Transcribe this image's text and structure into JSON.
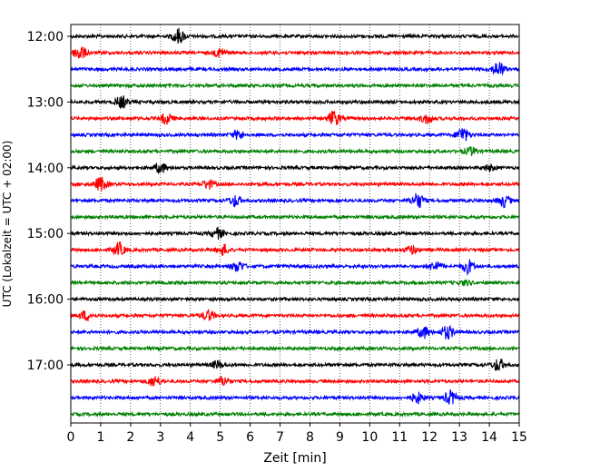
{
  "chart_data": {
    "type": "line",
    "title": "",
    "xlabel": "Zeit  [min]",
    "ylabel": "UTC (Lokalzeit = UTC + 02:00)",
    "xlim": [
      0,
      15
    ],
    "x_ticks": [
      0,
      1,
      2,
      3,
      4,
      5,
      6,
      7,
      8,
      9,
      10,
      11,
      12,
      13,
      14,
      15
    ],
    "x_tick_labels": [
      "0",
      "1",
      "2",
      "3",
      "4",
      "5",
      "6",
      "7",
      "8",
      "9",
      "10",
      "11",
      "12",
      "13",
      "14",
      "15"
    ],
    "grid": "vertical-dotted",
    "y_tick_labels": [
      {
        "label": "12:00",
        "trace_index": 0
      },
      {
        "label": "13:00",
        "trace_index": 4
      },
      {
        "label": "14:00",
        "trace_index": 8
      },
      {
        "label": "15:00",
        "trace_index": 12
      },
      {
        "label": "16:00",
        "trace_index": 16
      },
      {
        "label": "17:00",
        "trace_index": 20
      }
    ],
    "color_cycle": [
      "#000000",
      "#ff0000",
      "#0000ff",
      "#008000"
    ],
    "trace_interval_minutes": 15,
    "series": [
      {
        "name": "12:00",
        "bursts": [
          [
            3.6,
            1.0
          ]
        ]
      },
      {
        "name": "12:15",
        "bursts": [
          [
            0.3,
            1.0
          ],
          [
            5.0,
            0.6
          ]
        ]
      },
      {
        "name": "12:30",
        "bursts": [
          [
            14.3,
            1.0
          ]
        ]
      },
      {
        "name": "12:45",
        "bursts": []
      },
      {
        "name": "13:00",
        "bursts": [
          [
            1.7,
            0.8
          ]
        ]
      },
      {
        "name": "13:15",
        "bursts": [
          [
            3.2,
            0.7
          ],
          [
            8.8,
            1.0
          ],
          [
            11.9,
            0.6
          ]
        ]
      },
      {
        "name": "13:30",
        "bursts": [
          [
            5.6,
            0.6
          ],
          [
            13.1,
            1.0
          ]
        ]
      },
      {
        "name": "13:45",
        "bursts": [
          [
            13.4,
            0.5
          ]
        ]
      },
      {
        "name": "14:00",
        "bursts": [
          [
            3.0,
            0.7
          ],
          [
            14.0,
            0.4
          ]
        ]
      },
      {
        "name": "14:15",
        "bursts": [
          [
            1.0,
            0.9
          ],
          [
            4.6,
            0.6
          ]
        ]
      },
      {
        "name": "14:30",
        "bursts": [
          [
            5.5,
            0.7
          ],
          [
            11.6,
            1.0
          ],
          [
            14.5,
            0.8
          ]
        ]
      },
      {
        "name": "14:45",
        "bursts": []
      },
      {
        "name": "15:00",
        "bursts": [
          [
            4.9,
            0.7
          ]
        ]
      },
      {
        "name": "15:15",
        "bursts": [
          [
            1.6,
            0.9
          ],
          [
            5.1,
            0.7
          ],
          [
            11.4,
            0.5
          ]
        ]
      },
      {
        "name": "15:30",
        "bursts": [
          [
            5.6,
            0.7
          ],
          [
            12.2,
            0.6
          ],
          [
            13.3,
            0.9
          ]
        ]
      },
      {
        "name": "15:45",
        "bursts": [
          [
            13.2,
            0.3
          ]
        ]
      },
      {
        "name": "16:00",
        "bursts": []
      },
      {
        "name": "16:15",
        "bursts": [
          [
            0.5,
            0.6
          ],
          [
            4.6,
            0.7
          ]
        ]
      },
      {
        "name": "16:30",
        "bursts": [
          [
            11.8,
            0.8
          ],
          [
            12.6,
            0.9
          ]
        ]
      },
      {
        "name": "16:45",
        "bursts": []
      },
      {
        "name": "17:00",
        "bursts": [
          [
            4.9,
            0.5
          ],
          [
            14.3,
            0.8
          ]
        ]
      },
      {
        "name": "17:15",
        "bursts": [
          [
            2.8,
            0.7
          ],
          [
            5.1,
            0.6
          ]
        ]
      },
      {
        "name": "17:30",
        "bursts": [
          [
            11.6,
            0.7
          ],
          [
            12.7,
            0.9
          ]
        ]
      },
      {
        "name": "17:45",
        "bursts": []
      }
    ]
  }
}
